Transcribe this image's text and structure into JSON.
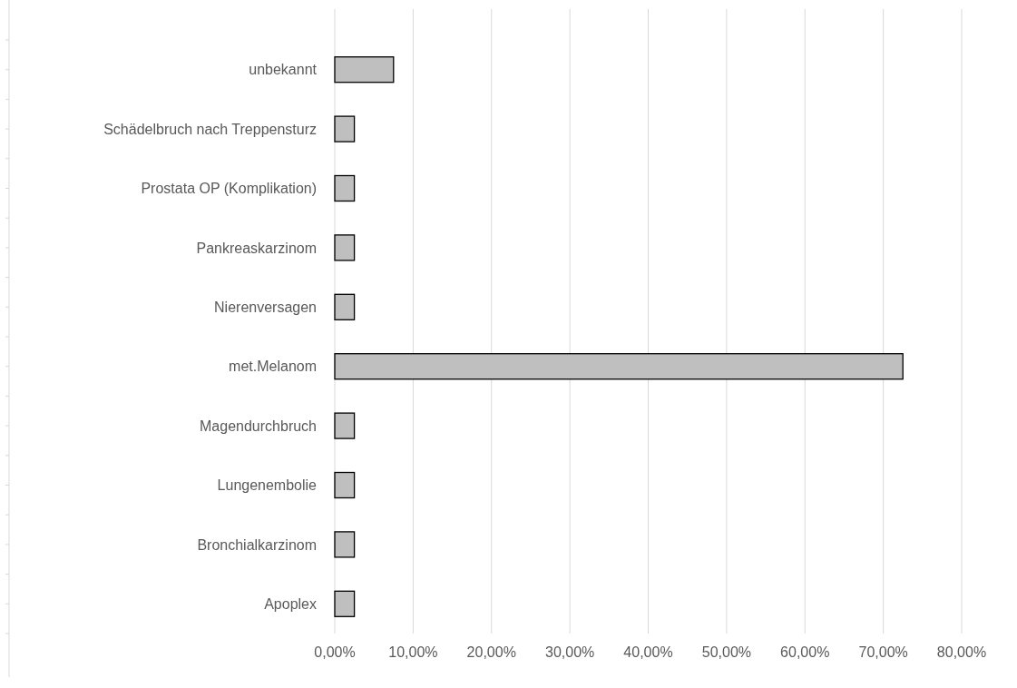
{
  "chart_data": {
    "type": "bar",
    "orientation": "horizontal",
    "categories": [
      "unbekannt",
      "Schädelbruch nach Treppensturz",
      "Prostata OP (Komplikation)",
      "Pankreaskarzinom",
      "Nierenversagen",
      "met.Melanom",
      "Magendurchbruch",
      "Lungenembolie",
      "Bronchialkarzinom",
      "Apoplex"
    ],
    "values": [
      7.5,
      2.5,
      2.5,
      2.5,
      2.5,
      72.5,
      2.5,
      2.5,
      2.5,
      2.5
    ],
    "color": "#bfbfbf",
    "xlim": [
      0,
      80
    ],
    "xticks": [
      {
        "value": 0,
        "label": "0,00%"
      },
      {
        "value": 10,
        "label": "10,00%"
      },
      {
        "value": 20,
        "label": "20,00%"
      },
      {
        "value": 30,
        "label": "30,00%"
      },
      {
        "value": 40,
        "label": "40,00%"
      },
      {
        "value": 50,
        "label": "50,00%"
      },
      {
        "value": 60,
        "label": "60,00%"
      },
      {
        "value": 70,
        "label": "70,00%"
      },
      {
        "value": 80,
        "label": "80,00%"
      }
    ],
    "grid": "x"
  }
}
